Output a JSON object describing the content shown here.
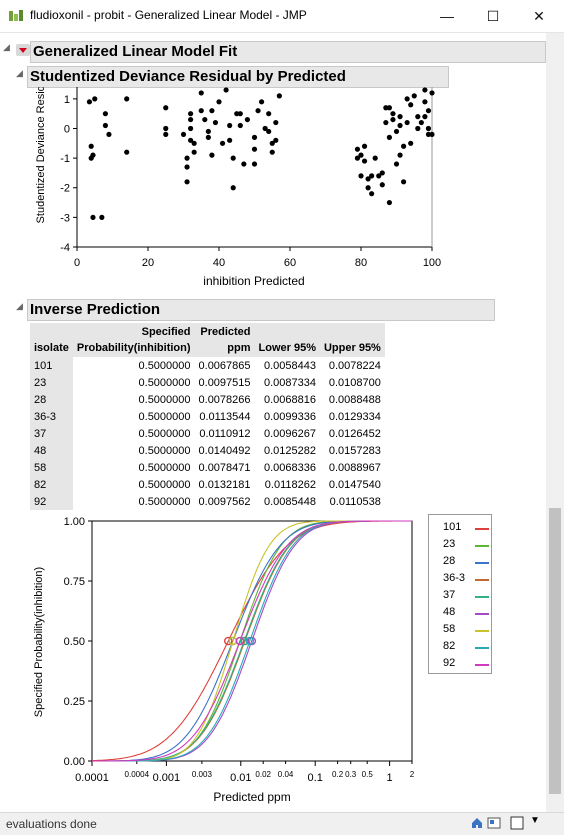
{
  "window": {
    "title": "fludioxonil - probit - Generalized Linear Model - JMP",
    "minimize": "—",
    "maximize": "☐",
    "close": "✕"
  },
  "report": {
    "fit_title": "Generalized Linear Model Fit",
    "residual_title": "Studentized Deviance Residual by Predicted",
    "inverse_title": "Inverse Prediction"
  },
  "table": {
    "headers": [
      [
        "",
        "isolate"
      ],
      [
        "Specified",
        "Probability(inhibition)"
      ],
      [
        "Predicted",
        "ppm"
      ],
      [
        "",
        "Lower 95%"
      ],
      [
        "",
        "Upper 95%"
      ]
    ],
    "rows": [
      [
        "101",
        "0.5000000",
        "0.0067865",
        "0.0058443",
        "0.0078224"
      ],
      [
        "23",
        "0.5000000",
        "0.0097515",
        "0.0087334",
        "0.0108700"
      ],
      [
        "28",
        "0.5000000",
        "0.0078266",
        "0.0068816",
        "0.0088488"
      ],
      [
        "36-3",
        "0.5000000",
        "0.0113544",
        "0.0099336",
        "0.0129334"
      ],
      [
        "37",
        "0.5000000",
        "0.0110912",
        "0.0096267",
        "0.0126452"
      ],
      [
        "48",
        "0.5000000",
        "0.0140492",
        "0.0125282",
        "0.0157283"
      ],
      [
        "58",
        "0.5000000",
        "0.0078471",
        "0.0068336",
        "0.0088967"
      ],
      [
        "82",
        "0.5000000",
        "0.0132181",
        "0.0118262",
        "0.0147540"
      ],
      [
        "92",
        "0.5000000",
        "0.0097562",
        "0.0085448",
        "0.0110538"
      ]
    ]
  },
  "legend": [
    {
      "name": "101",
      "color": "#e0403c"
    },
    {
      "name": "23",
      "color": "#5fb636"
    },
    {
      "name": "28",
      "color": "#3a74c8"
    },
    {
      "name": "36-3",
      "color": "#c06a30"
    },
    {
      "name": "37",
      "color": "#33b08a"
    },
    {
      "name": "48",
      "color": "#a54bc8"
    },
    {
      "name": "58",
      "color": "#c8c32a"
    },
    {
      "name": "82",
      "color": "#2aaab8"
    },
    {
      "name": "92",
      "color": "#d03ac0"
    }
  ],
  "status": {
    "text": "evaluations done"
  },
  "chart_data": [
    {
      "type": "scatter",
      "title": "Studentized Deviance Residual by Predicted",
      "xlabel": "inhibition Predicted",
      "ylabel": "Studentized Deviance Residual",
      "xlim": [
        0,
        100
      ],
      "ylim": [
        -4,
        1.4
      ],
      "x_ticks": [
        "0",
        "20",
        "40",
        "60",
        "80",
        "100"
      ],
      "y_ticks": [
        "-4",
        "-3",
        "-2",
        "-1",
        "0",
        "1"
      ],
      "points": [
        [
          3.5,
          0.9
        ],
        [
          4,
          -0.6
        ],
        [
          4,
          -1.0
        ],
        [
          4.5,
          -0.9
        ],
        [
          4.5,
          -3.0
        ],
        [
          5,
          1.0
        ],
        [
          7,
          -3.0
        ],
        [
          8,
          0.5
        ],
        [
          8,
          0.1
        ],
        [
          9,
          -0.2
        ],
        [
          14,
          1.0
        ],
        [
          14,
          -0.8
        ],
        [
          25,
          0.7
        ],
        [
          25,
          -0.2
        ],
        [
          25,
          0
        ],
        [
          30,
          -0.2
        ],
        [
          31,
          -1.8
        ],
        [
          31,
          -1.3
        ],
        [
          31,
          -1.0
        ],
        [
          32,
          -0.4
        ],
        [
          32,
          0
        ],
        [
          32,
          0.3
        ],
        [
          32,
          0.5
        ],
        [
          33,
          -0.5
        ],
        [
          33,
          -0.8
        ],
        [
          35,
          1.2
        ],
        [
          35,
          0.6
        ],
        [
          36,
          0.3
        ],
        [
          37,
          -0.1
        ],
        [
          37,
          -0.3
        ],
        [
          38,
          -0.9
        ],
        [
          38,
          0.6
        ],
        [
          39,
          0.2
        ],
        [
          40,
          0.9
        ],
        [
          41,
          -0.5
        ],
        [
          42,
          1.3
        ],
        [
          43,
          0.1
        ],
        [
          43,
          -0.4
        ],
        [
          44,
          -1.0
        ],
        [
          44,
          -2.0
        ],
        [
          45,
          0.5
        ],
        [
          46,
          0.1
        ],
        [
          46,
          0.5
        ],
        [
          47,
          -1.2
        ],
        [
          48,
          0.3
        ],
        [
          50,
          -0.3
        ],
        [
          50,
          -0.7
        ],
        [
          50,
          -1.2
        ],
        [
          51,
          0.6
        ],
        [
          52,
          0.9
        ],
        [
          53,
          0
        ],
        [
          54,
          -0.1
        ],
        [
          54,
          0.5
        ],
        [
          55,
          -0.5
        ],
        [
          55,
          -0.8
        ],
        [
          56,
          0.2
        ],
        [
          56,
          -0.4
        ],
        [
          57,
          1.1
        ],
        [
          79,
          -0.7
        ],
        [
          79,
          -1.0
        ],
        [
          80,
          -0.9
        ],
        [
          80,
          -1.6
        ],
        [
          81,
          -0.6
        ],
        [
          81,
          -1.1
        ],
        [
          82,
          -1.7
        ],
        [
          82,
          -2.0
        ],
        [
          83,
          -1.6
        ],
        [
          83,
          -2.2
        ],
        [
          84,
          -1.0
        ],
        [
          85,
          -1.6
        ],
        [
          86,
          -1.5
        ],
        [
          86,
          -1.9
        ],
        [
          87,
          0.7
        ],
        [
          87,
          0.2
        ],
        [
          88,
          0.7
        ],
        [
          88,
          -0.3
        ],
        [
          88,
          -2.5
        ],
        [
          89,
          0.3
        ],
        [
          89,
          0.5
        ],
        [
          90,
          -1.2
        ],
        [
          90,
          -0.1
        ],
        [
          91,
          0.4
        ],
        [
          91,
          0.1
        ],
        [
          91,
          -0.9
        ],
        [
          92,
          -1.8
        ],
        [
          92,
          -0.6
        ],
        [
          93,
          1.0
        ],
        [
          93,
          0.2
        ],
        [
          94,
          0.8
        ],
        [
          94,
          -0.5
        ],
        [
          95,
          1.1
        ],
        [
          96,
          0.4
        ],
        [
          96,
          0
        ],
        [
          97,
          0.2
        ],
        [
          98,
          0.9
        ],
        [
          98,
          1.3
        ],
        [
          98,
          0.4
        ],
        [
          99,
          0
        ],
        [
          99,
          -0.2
        ],
        [
          99,
          0.6
        ],
        [
          100,
          1.2
        ],
        [
          100,
          -0.2
        ]
      ]
    },
    {
      "type": "line",
      "xlabel": "Predicted ppm",
      "ylabel": "Specified Probability(inhibition)",
      "x_scale": "log",
      "xlim": [
        0.0001,
        2
      ],
      "ylim": [
        0,
        1
      ],
      "x_ticks": [
        "0.0001",
        "0.0004",
        "0.001",
        "0.003",
        "0.01",
        "0.02",
        "0.04",
        "0.1",
        "0.2",
        "0.3",
        "0.5",
        "1",
        "2"
      ],
      "y_ticks": [
        "0.00",
        "0.25",
        "0.50",
        "0.75",
        "1.00"
      ],
      "series": [
        {
          "name": "101",
          "ed50": 0.0067865,
          "slope": 1.6
        },
        {
          "name": "23",
          "ed50": 0.0097515,
          "slope": 2.3
        },
        {
          "name": "28",
          "ed50": 0.0078266,
          "slope": 2.0
        },
        {
          "name": "36-3",
          "ed50": 0.0113544,
          "slope": 2.1
        },
        {
          "name": "37",
          "ed50": 0.0110912,
          "slope": 2.1
        },
        {
          "name": "48",
          "ed50": 0.0140492,
          "slope": 2.2
        },
        {
          "name": "58",
          "ed50": 0.0078471,
          "slope": 2.6
        },
        {
          "name": "82",
          "ed50": 0.0132181,
          "slope": 2.2
        },
        {
          "name": "92",
          "ed50": 0.0097562,
          "slope": 2.0
        }
      ]
    }
  ]
}
